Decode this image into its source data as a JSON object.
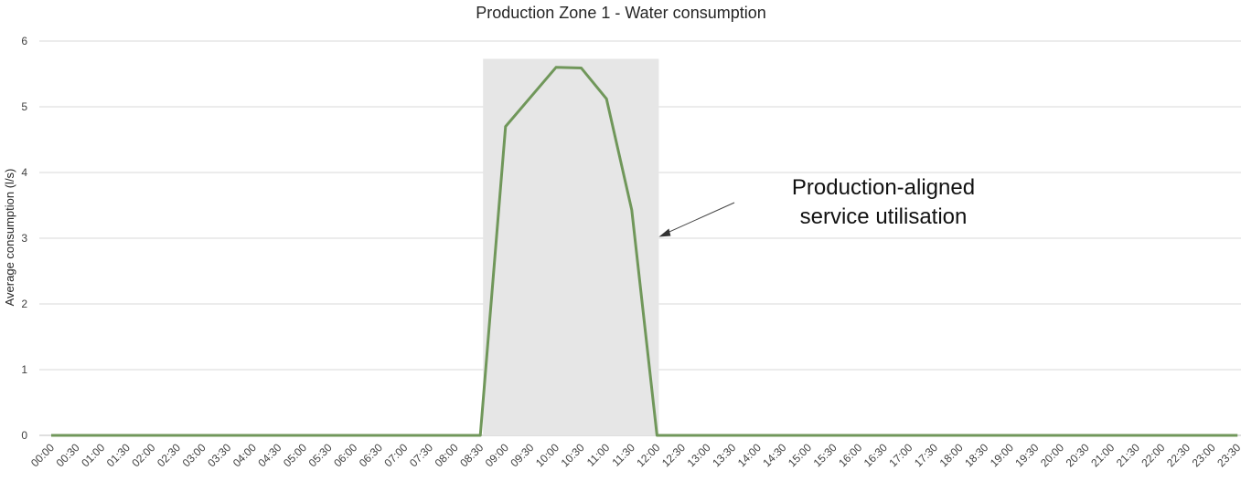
{
  "chart_data": {
    "type": "line",
    "title": "Production Zone 1 - Water consumption",
    "xlabel": "",
    "ylabel": "Average consumption (l/s)",
    "ylim": [
      0,
      6
    ],
    "yticks": [
      "0",
      "1",
      "2",
      "3",
      "4",
      "5",
      "6"
    ],
    "grid": true,
    "x": [
      "00:00",
      "00:30",
      "01:00",
      "01:30",
      "02:00",
      "02:30",
      "03:00",
      "03:30",
      "04:00",
      "04:30",
      "05:00",
      "05:30",
      "06:00",
      "06:30",
      "07:00",
      "07:30",
      "08:00",
      "08:30",
      "09:00",
      "09:30",
      "10:00",
      "10:30",
      "11:00",
      "11:30",
      "12:00",
      "12:30",
      "13:00",
      "13:30",
      "14:00",
      "14:30",
      "15:00",
      "15:30",
      "16:00",
      "16:30",
      "17:00",
      "17:30",
      "18:00",
      "18:30",
      "19:00",
      "19:30",
      "20:00",
      "20:30",
      "21:00",
      "21:30",
      "22:00",
      "22:30",
      "23:00",
      "23:30"
    ],
    "series": [
      {
        "color": "#70975a",
        "values": [
          0,
          0,
          0,
          0,
          0,
          0,
          0,
          0,
          0,
          0,
          0,
          0,
          0,
          0,
          0,
          0,
          0,
          0,
          4.7,
          5.15,
          5.6,
          5.59,
          5.12,
          3.43,
          0,
          0,
          0,
          0,
          0,
          0,
          0,
          0,
          0,
          0,
          0,
          0,
          0,
          0,
          0,
          0,
          0,
          0,
          0,
          0,
          0,
          0,
          0,
          0
        ]
      }
    ],
    "highlight": {
      "x_start": "08:30",
      "x_end": "12:00",
      "y_top": 5.73,
      "color": "#e6e6e6"
    },
    "annotation": {
      "lines": [
        "Production-aligned",
        "service utilisation"
      ],
      "points_to": {
        "x": "12:00",
        "y": 3.02
      }
    }
  }
}
